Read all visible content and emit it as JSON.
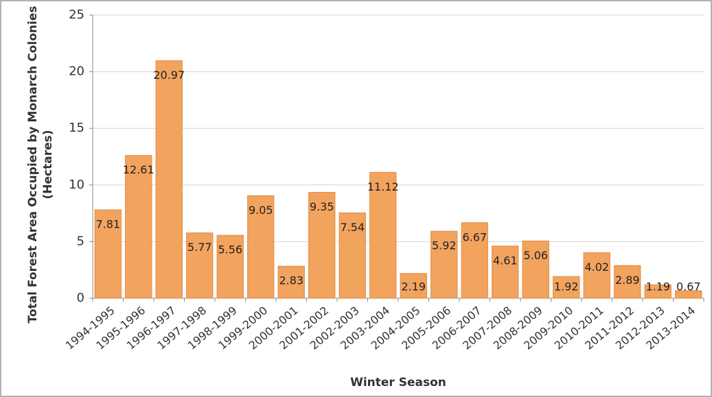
{
  "chart_data": {
    "type": "bar",
    "ylabel": [
      "Total Forest Area Occupied by Monarch Colonies",
      "(Hectares)"
    ],
    "xlabel": "Winter Season",
    "categories": [
      "1994-1995",
      "1995-1996",
      "1996-1997",
      "1997-1998",
      "1998-1999",
      "1999-2000",
      "2000-2001",
      "2001-2002",
      "2002-2003",
      "2003-2004",
      "2004-2005",
      "2005-2006",
      "2006-2007",
      "2007-2008",
      "2008-2009",
      "2009-2010",
      "2010-2011",
      "2011-2012",
      "2012-2013",
      "2013-2014"
    ],
    "values": [
      7.81,
      12.61,
      20.97,
      5.77,
      5.56,
      9.05,
      2.83,
      9.35,
      7.54,
      11.12,
      2.19,
      5.92,
      6.67,
      4.61,
      5.06,
      1.92,
      4.02,
      2.89,
      1.19,
      0.67
    ],
    "color": "#f2a35e",
    "ylim": [
      0,
      25
    ],
    "yticks": [
      0,
      5,
      10,
      15,
      20,
      25
    ],
    "grid": true
  }
}
